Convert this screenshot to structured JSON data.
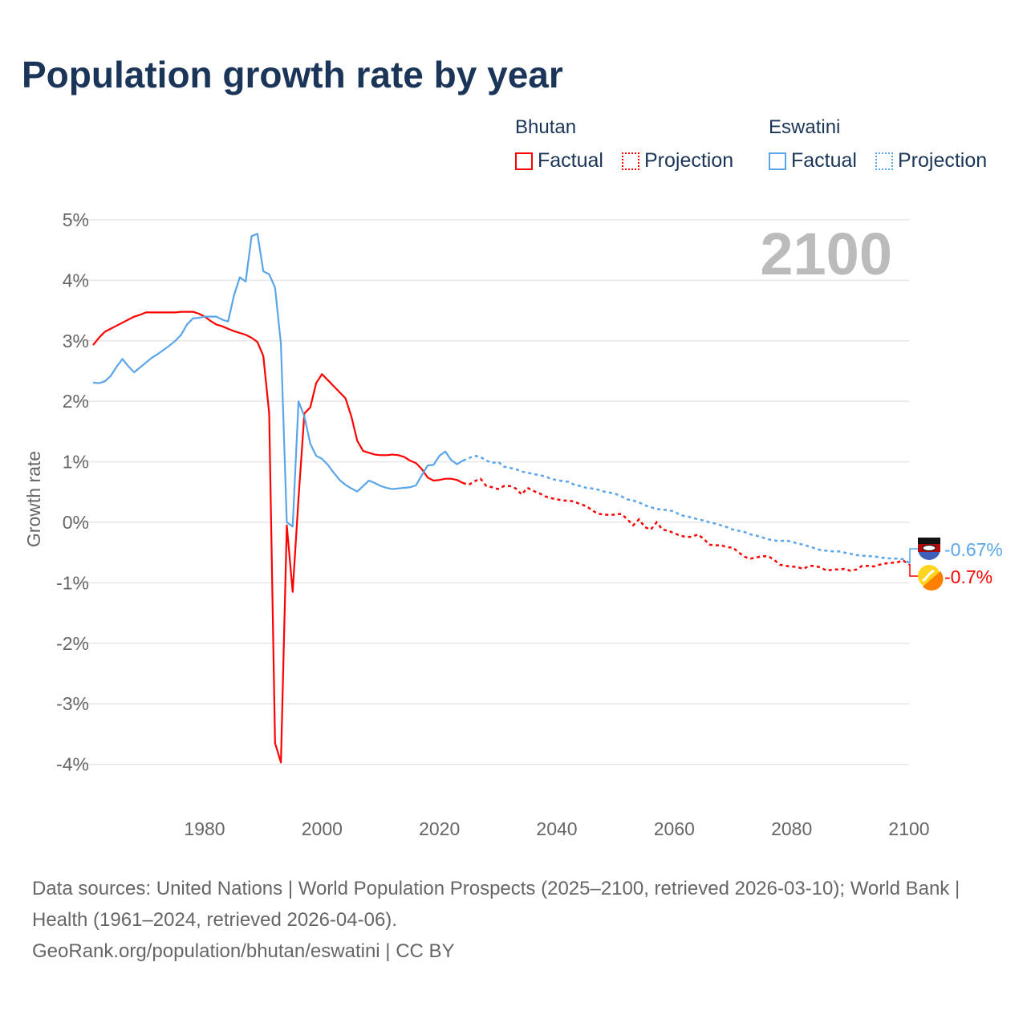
{
  "title": "Population growth rate by year",
  "legend": {
    "groups": [
      {
        "name": "Bhutan",
        "color": "#ff0000",
        "factual": "Factual",
        "projection": "Projection"
      },
      {
        "name": "Eswatini",
        "color": "#5aa5ea",
        "factual": "Factual",
        "projection": "Projection"
      }
    ]
  },
  "chart_data": {
    "type": "line",
    "title": "Population growth rate by year",
    "xlabel": "",
    "ylabel": "Growth rate",
    "xlim": [
      1961,
      2100
    ],
    "ylim": [
      -4.5,
      5
    ],
    "yticks": [
      5,
      4,
      3,
      2,
      1,
      0,
      -1,
      -2,
      -3,
      -4
    ],
    "ytick_labels": [
      "5%",
      "4%",
      "3%",
      "2%",
      "1%",
      "0%",
      "-1%",
      "-2%",
      "-3%",
      "-4%"
    ],
    "xticks": [
      1980,
      2000,
      2020,
      2040,
      2060,
      2080,
      2100
    ],
    "xtick_labels": [
      "1980",
      "2000",
      "2020",
      "2040",
      "2060",
      "2080",
      "2100"
    ],
    "grid": true,
    "current_year_label": "2100",
    "series": [
      {
        "name": "Bhutan",
        "color": "#ff0000",
        "factual_start": 1961,
        "factual": [
          2.93,
          3.05,
          3.15,
          3.2,
          3.25,
          3.3,
          3.35,
          3.4,
          3.43,
          3.47,
          3.47,
          3.47,
          3.47,
          3.47,
          3.47,
          3.48,
          3.48,
          3.48,
          3.45,
          3.4,
          3.33,
          3.27,
          3.24,
          3.2,
          3.16,
          3.13,
          3.1,
          3.05,
          2.98,
          2.75,
          1.8,
          -3.65,
          -3.97,
          -0.05,
          -1.15,
          0.4,
          1.8,
          1.9,
          2.3,
          2.45,
          2.35,
          2.25,
          2.15,
          2.05,
          1.75,
          1.35,
          1.18,
          1.15,
          1.12,
          1.11,
          1.11,
          1.12,
          1.11,
          1.08,
          1.02,
          0.98,
          0.88,
          0.74,
          0.69,
          0.7,
          0.72,
          0.72,
          0.7,
          0.65
        ],
        "projection_start": 2025,
        "projection": [
          0.62,
          0.68,
          0.72,
          0.6,
          0.58,
          0.55,
          0.6,
          0.6,
          0.56,
          0.46,
          0.57,
          0.52,
          0.48,
          0.43,
          0.4,
          0.38,
          0.36,
          0.36,
          0.34,
          0.3,
          0.27,
          0.2,
          0.14,
          0.13,
          0.12,
          0.13,
          0.14,
          0.05,
          -0.05,
          0.05,
          -0.08,
          -0.12,
          0.0,
          -0.12,
          -0.14,
          -0.18,
          -0.22,
          -0.24,
          -0.24,
          -0.2,
          -0.27,
          -0.37,
          -0.38,
          -0.38,
          -0.41,
          -0.42,
          -0.5,
          -0.57,
          -0.6,
          -0.58,
          -0.56,
          -0.56,
          -0.62,
          -0.7,
          -0.72,
          -0.73,
          -0.74,
          -0.77,
          -0.72,
          -0.72,
          -0.75,
          -0.8,
          -0.78,
          -0.78,
          -0.77,
          -0.8,
          -0.78,
          -0.72,
          -0.72,
          -0.73,
          -0.7,
          -0.68,
          -0.67,
          -0.66,
          -0.63,
          -0.7
        ],
        "end_label": "-0.7%"
      },
      {
        "name": "Eswatini",
        "color": "#5aa5ea",
        "factual_start": 1961,
        "factual": [
          2.31,
          2.3,
          2.33,
          2.42,
          2.57,
          2.7,
          2.58,
          2.48,
          2.56,
          2.64,
          2.72,
          2.78,
          2.85,
          2.92,
          3.0,
          3.1,
          3.27,
          3.37,
          3.38,
          3.4,
          3.4,
          3.4,
          3.35,
          3.32,
          3.75,
          4.05,
          3.98,
          4.73,
          4.77,
          4.15,
          4.1,
          3.88,
          2.95,
          0.0,
          -0.07,
          2.0,
          1.75,
          1.3,
          1.1,
          1.05,
          0.95,
          0.82,
          0.7,
          0.62,
          0.56,
          0.51,
          0.6,
          0.69,
          0.65,
          0.6,
          0.57,
          0.55,
          0.56,
          0.57,
          0.58,
          0.61,
          0.78,
          0.94,
          0.95,
          1.1,
          1.17,
          1.03,
          0.96,
          1.02
        ],
        "projection_start": 2025,
        "projection": [
          1.06,
          1.1,
          1.08,
          1.02,
          0.98,
          1.0,
          0.92,
          0.9,
          0.88,
          0.84,
          0.82,
          0.8,
          0.78,
          0.76,
          0.72,
          0.7,
          0.68,
          0.67,
          0.62,
          0.6,
          0.57,
          0.56,
          0.54,
          0.51,
          0.49,
          0.47,
          0.43,
          0.38,
          0.36,
          0.33,
          0.28,
          0.25,
          0.22,
          0.21,
          0.2,
          0.18,
          0.12,
          0.1,
          0.08,
          0.05,
          0.03,
          0.0,
          -0.02,
          -0.05,
          -0.08,
          -0.12,
          -0.14,
          -0.16,
          -0.2,
          -0.22,
          -0.25,
          -0.28,
          -0.3,
          -0.31,
          -0.3,
          -0.32,
          -0.35,
          -0.37,
          -0.4,
          -0.43,
          -0.46,
          -0.47,
          -0.48,
          -0.48,
          -0.5,
          -0.52,
          -0.54,
          -0.55,
          -0.56,
          -0.56,
          -0.58,
          -0.59,
          -0.6,
          -0.6,
          -0.61,
          -0.67
        ],
        "end_label": "-0.67%"
      }
    ]
  },
  "footer": {
    "line1": "Data sources: United Nations | World Population Prospects (2025–2100, retrieved 2026-03-10); World Bank | Health (1961–2024, retrieved 2026-04-06).",
    "line2": "GeoRank.org/population/bhutan/eswatini | CC BY"
  }
}
